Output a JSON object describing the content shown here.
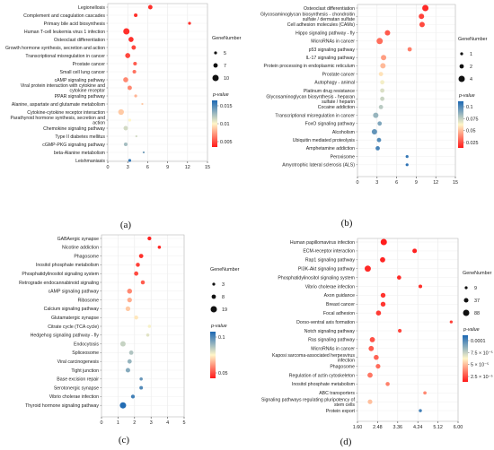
{
  "gradient": {
    "low": "#ff1a1a",
    "mid": "#fff6c8",
    "high": "#1c68b3"
  },
  "chart_data": [
    {
      "panel": "(a)",
      "type": "scatter",
      "xlim": [
        0,
        15
      ],
      "xticks": [
        "0",
        "3",
        "6",
        "9",
        "12",
        "15"
      ],
      "legend": {
        "size_title": "GeneNumber",
        "sizes": [
          5,
          7,
          10
        ],
        "color_title": "p-value",
        "color_ticks": [
          "0.015",
          "0.01",
          "0.005"
        ],
        "pmin": 0.0,
        "pmax": 0.02
      },
      "points": [
        {
          "label": "Legionellosis",
          "x": 6.4,
          "p": 0.001,
          "n": 7
        },
        {
          "label": "Complement and coagulation cascades",
          "x": 4.2,
          "p": 0.001,
          "n": 6
        },
        {
          "label": "Primary bile acid biosynthesis",
          "x": 12.3,
          "p": 0.001,
          "n": 5
        },
        {
          "label": "Human T-cell leukemia virus 1 infection",
          "x": 2.8,
          "p": 0.001,
          "n": 10
        },
        {
          "label": "Osteoclast differentiation",
          "x": 3.5,
          "p": 0.001,
          "n": 8
        },
        {
          "label": "Growth hormone synthesis, secretion and action",
          "x": 3.9,
          "p": 0.002,
          "n": 7
        },
        {
          "label": "Transcriptional misregulation in cancer",
          "x": 3.0,
          "p": 0.002,
          "n": 8
        },
        {
          "label": "Prostate cancer",
          "x": 4.1,
          "p": 0.003,
          "n": 6
        },
        {
          "label": "Small cell lung cancer",
          "x": 4.0,
          "p": 0.004,
          "n": 6
        },
        {
          "label": "cAMP signaling pathway",
          "x": 2.7,
          "p": 0.005,
          "n": 8
        },
        {
          "label": "Viral protein interaction with cytokine and cytokine receptor",
          "x": 3.3,
          "p": 0.005,
          "n": 7
        },
        {
          "label": "PPAR signaling pathway",
          "x": 4.2,
          "p": 0.007,
          "n": 5
        },
        {
          "label": "Alanine, aspartate and glutamate metabolism",
          "x": 5.2,
          "p": 0.008,
          "n": 4
        },
        {
          "label": "Cytokine-cytokine receptor interaction",
          "x": 2.0,
          "p": 0.008,
          "n": 9
        },
        {
          "label": "Parathyroid hormone synthesis, secretion and action",
          "x": 3.3,
          "p": 0.01,
          "n": 5
        },
        {
          "label": "Chemokine signaling pathway",
          "x": 2.7,
          "p": 0.012,
          "n": 7
        },
        {
          "label": "Type II diabetes mellitus",
          "x": 4.3,
          "p": 0.012,
          "n": 4
        },
        {
          "label": "cGMP-PKG signaling pathway",
          "x": 2.7,
          "p": 0.014,
          "n": 6
        },
        {
          "label": "beta-Alanine metabolism",
          "x": 5.4,
          "p": 0.016,
          "n": 4
        },
        {
          "label": "Leishmaniasis",
          "x": 3.3,
          "p": 0.019,
          "n": 5
        }
      ]
    },
    {
      "panel": "(b)",
      "type": "scatter",
      "xlim": [
        0,
        15
      ],
      "xticks": [
        "0",
        "3",
        "6",
        "9",
        "12",
        "15"
      ],
      "legend": {
        "size_title": "GeneNumber",
        "sizes": [
          1,
          2,
          4
        ],
        "color_title": "p-value",
        "color_ticks": [
          "0.1",
          "0.075",
          "0.05",
          "0.025"
        ],
        "pmin": 0.0,
        "pmax": 0.11
      },
      "points": [
        {
          "label": "Osteoclast differentiation",
          "x": 10.4,
          "p": 0.004,
          "n": 4
        },
        {
          "label": "Glycosaminoglycan biosynthesis - chondroitin sulfate / dermatan sulfate",
          "x": 9.8,
          "p": 0.01,
          "n": 3
        },
        {
          "label": "Cell adhesion molecules (CAMs)",
          "x": 9.9,
          "p": 0.012,
          "n": 3
        },
        {
          "label": "Hippo signaling pathway - fly",
          "x": 4.6,
          "p": 0.016,
          "n": 3
        },
        {
          "label": "MicroRNAs in cancer",
          "x": 3.4,
          "p": 0.021,
          "n": 4
        },
        {
          "label": "p53 signaling pathway",
          "x": 8.0,
          "p": 0.025,
          "n": 2
        },
        {
          "label": "IL-17 signaling pathway",
          "x": 4.0,
          "p": 0.033,
          "n": 3
        },
        {
          "label": "Protein processing in endoplasmic reticulum",
          "x": 3.9,
          "p": 0.04,
          "n": 3
        },
        {
          "label": "Prostate cancer",
          "x": 3.6,
          "p": 0.05,
          "n": 2
        },
        {
          "label": "Autophagy - animal",
          "x": 3.8,
          "p": 0.058,
          "n": 2
        },
        {
          "label": "Platinum drug resistance",
          "x": 3.8,
          "p": 0.064,
          "n": 2
        },
        {
          "label": "Glycosaminoglycan biosynthesis - heparan sulfate / heparin",
          "x": 3.8,
          "p": 0.068,
          "n": 2
        },
        {
          "label": "Cocaine addiction",
          "x": 3.6,
          "p": 0.072,
          "n": 2
        },
        {
          "label": "Transcriptional misregulation in cancer",
          "x": 2.8,
          "p": 0.08,
          "n": 3
        },
        {
          "label": "FoxO signaling pathway",
          "x": 3.4,
          "p": 0.086,
          "n": 2
        },
        {
          "label": "Alcoholism",
          "x": 2.6,
          "p": 0.093,
          "n": 3
        },
        {
          "label": "Ubiquitin mediated proteolysis",
          "x": 3.3,
          "p": 0.096,
          "n": 2
        },
        {
          "label": "Amphetamine addiction",
          "x": 3.1,
          "p": 0.099,
          "n": 2
        },
        {
          "label": "Peroxisome",
          "x": 7.6,
          "p": 0.104,
          "n": 1
        },
        {
          "label": "Amyotrophic lateral sclerosis (ALS)",
          "x": 7.6,
          "p": 0.106,
          "n": 1
        }
      ]
    },
    {
      "panel": "(c)",
      "type": "scatter",
      "xlim": [
        0,
        5
      ],
      "xticks": [
        "0",
        "1",
        "2",
        "3",
        "4",
        "5"
      ],
      "legend": {
        "size_title": "GeneNumber",
        "sizes": [
          3,
          8,
          19
        ],
        "color_title": "p-value",
        "color_ticks": [
          "0.1",
          "0.05"
        ],
        "pmin": 0.0,
        "pmax": 0.12
      },
      "points": [
        {
          "label": "GABAergic synapse",
          "x": 2.9,
          "p": 0.002,
          "n": 6
        },
        {
          "label": "Nicotine addiction",
          "x": 3.5,
          "p": 0.003,
          "n": 4
        },
        {
          "label": "Phagosome",
          "x": 2.4,
          "p": 0.006,
          "n": 8
        },
        {
          "label": "Inositol phosphate metabolism",
          "x": 2.2,
          "p": 0.01,
          "n": 7
        },
        {
          "label": "Phosphatidylinositol signaling system",
          "x": 2.1,
          "p": 0.013,
          "n": 8
        },
        {
          "label": "Retrograde endocannabinoid signaling",
          "x": 2.5,
          "p": 0.018,
          "n": 7
        },
        {
          "label": "cAMP signaling pathway",
          "x": 1.7,
          "p": 0.03,
          "n": 11
        },
        {
          "label": "Ribosome",
          "x": 1.7,
          "p": 0.04,
          "n": 10
        },
        {
          "label": "Calcium signaling pathway",
          "x": 1.6,
          "p": 0.048,
          "n": 10
        },
        {
          "label": "Glutamatergic synapse",
          "x": 2.1,
          "p": 0.056,
          "n": 7
        },
        {
          "label": "Citrate cycle (TCA cycle)",
          "x": 2.9,
          "p": 0.062,
          "n": 4
        },
        {
          "label": "Hedgehog signaling pathway - fly",
          "x": 2.8,
          "p": 0.068,
          "n": 4
        },
        {
          "label": "Endocytosis",
          "x": 1.3,
          "p": 0.075,
          "n": 13
        },
        {
          "label": "Spliceosome",
          "x": 1.8,
          "p": 0.081,
          "n": 8
        },
        {
          "label": "Viral carcinogenesis",
          "x": 1.7,
          "p": 0.088,
          "n": 8
        },
        {
          "label": "Tight junction",
          "x": 1.6,
          "p": 0.092,
          "n": 9
        },
        {
          "label": "Base excision repair",
          "x": 2.4,
          "p": 0.1,
          "n": 4
        },
        {
          "label": "Serotonergic synapse",
          "x": 2.4,
          "p": 0.106,
          "n": 5
        },
        {
          "label": "Vibrio cholerae infection",
          "x": 1.9,
          "p": 0.11,
          "n": 6
        },
        {
          "label": "Thyroid hormone signaling pathway",
          "x": 1.3,
          "p": 0.118,
          "n": 19
        }
      ]
    },
    {
      "panel": "(d)",
      "type": "scatter",
      "xlim": [
        1.6,
        6.0
      ],
      "xticks": [
        "1.60",
        "2.48",
        "3.36",
        "4.24",
        "5.12",
        "6.00"
      ],
      "legend": {
        "size_title": "GeneNumber",
        "sizes": [
          9,
          37,
          88
        ],
        "color_title": "p-value",
        "color_ticks": [
          "0.0001",
          "7.5 × 10⁻⁵",
          "5 × 10⁻⁵",
          "2.5 × 10⁻⁵"
        ],
        "pmin": 0.0,
        "pmax": 0.00012
      },
      "points": [
        {
          "label": "Human papillomavirus infection",
          "x": 2.75,
          "p": 1e-06,
          "n": 88
        },
        {
          "label": "ECM-receptor interaction",
          "x": 4.1,
          "p": 2e-06,
          "n": 37
        },
        {
          "label": "Rap1 signaling pathway",
          "x": 2.7,
          "p": 3e-06,
          "n": 55
        },
        {
          "label": "PI3K-Akt signaling pathway",
          "x": 2.05,
          "p": 4e-06,
          "n": 85
        },
        {
          "label": "Phosphatidylinositol signaling system",
          "x": 3.42,
          "p": 5e-06,
          "n": 30
        },
        {
          "label": "Vibrio cholerae infection",
          "x": 4.35,
          "p": 6e-06,
          "n": 20
        },
        {
          "label": "Axon guidance",
          "x": 2.72,
          "p": 7e-06,
          "n": 45
        },
        {
          "label": "Breast cancer",
          "x": 2.72,
          "p": 8e-06,
          "n": 45
        },
        {
          "label": "Focal adhesion",
          "x": 2.52,
          "p": 9e-06,
          "n": 50
        },
        {
          "label": "Dorso-ventral axis formation",
          "x": 5.7,
          "p": 1e-05,
          "n": 10
        },
        {
          "label": "Notch signaling pathway",
          "x": 3.45,
          "p": 1.2e-05,
          "n": 22
        },
        {
          "label": "Ras signaling pathway",
          "x": 2.25,
          "p": 1.5e-05,
          "n": 55
        },
        {
          "label": "MicroRNAs in cancer",
          "x": 2.2,
          "p": 1.8e-05,
          "n": 55
        },
        {
          "label": "Kaposi sarcoma-associated herpesvirus infection",
          "x": 2.42,
          "p": 2e-05,
          "n": 48
        },
        {
          "label": "Phagosome",
          "x": 2.5,
          "p": 2.2e-05,
          "n": 40
        },
        {
          "label": "Regulation of actin cytoskeleton",
          "x": 2.15,
          "p": 2.5e-05,
          "n": 55
        },
        {
          "label": "Inositol phosphate metabolism",
          "x": 2.92,
          "p": 2.8e-05,
          "n": 28
        },
        {
          "label": "ABC transporters",
          "x": 4.55,
          "p": 3e-05,
          "n": 15
        },
        {
          "label": "Signaling pathways regulating pluripotency of stem cells",
          "x": 2.15,
          "p": 4.5e-05,
          "n": 40
        },
        {
          "label": "Protein export",
          "x": 4.35,
          "p": 0.00011,
          "n": 12
        }
      ]
    }
  ]
}
